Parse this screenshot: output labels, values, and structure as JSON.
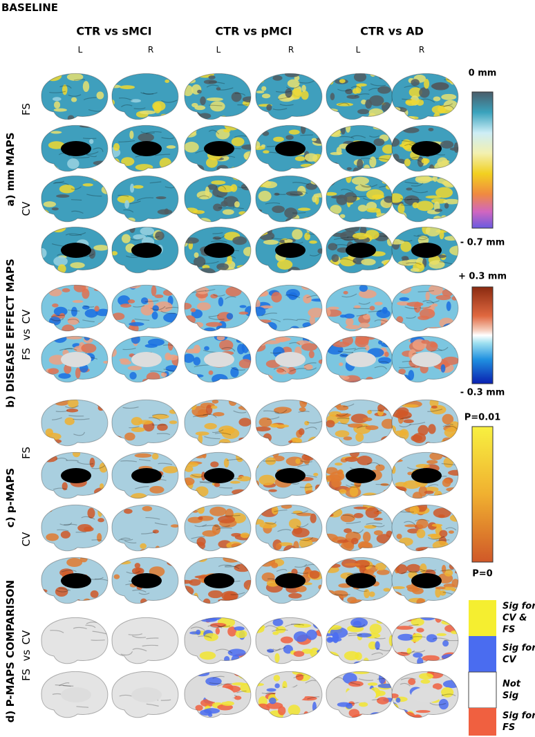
{
  "title": "BASELINE",
  "columns": [
    {
      "title": "CTR vs sMCI",
      "hemispheres": [
        "L",
        "R"
      ]
    },
    {
      "title": "CTR vs pMCI",
      "hemispheres": [
        "L",
        "R"
      ]
    },
    {
      "title": "CTR vs AD",
      "hemispheres": [
        "L",
        "R"
      ]
    }
  ],
  "sections": [
    {
      "label": "a) mm MAPS",
      "row_labels": [
        "FS",
        "CV"
      ]
    },
    {
      "label": "b) DISEASE EFFECT  MAPS",
      "row_labels": [
        "CV",
        "vs",
        "FS"
      ]
    },
    {
      "label": "c) p-MAPS",
      "row_labels": [
        "FS",
        "CV"
      ]
    },
    {
      "label": "d) P-MAPS COMPARISON",
      "row_labels": [
        "CV",
        "vs",
        "FS"
      ]
    }
  ],
  "colorbars": [
    {
      "top": "0 mm",
      "bottom": "- 0.7 mm"
    },
    {
      "top": "+ 0.3 mm",
      "bottom": "- 0.3 mm"
    },
    {
      "top": "P=0.01",
      "bottom": "P=0"
    }
  ],
  "legend": [
    {
      "label": "Sig for CV & FS"
    },
    {
      "label": "Sig for CV"
    },
    {
      "label": "Not Sig"
    },
    {
      "label": "Sig for FS"
    }
  ]
}
